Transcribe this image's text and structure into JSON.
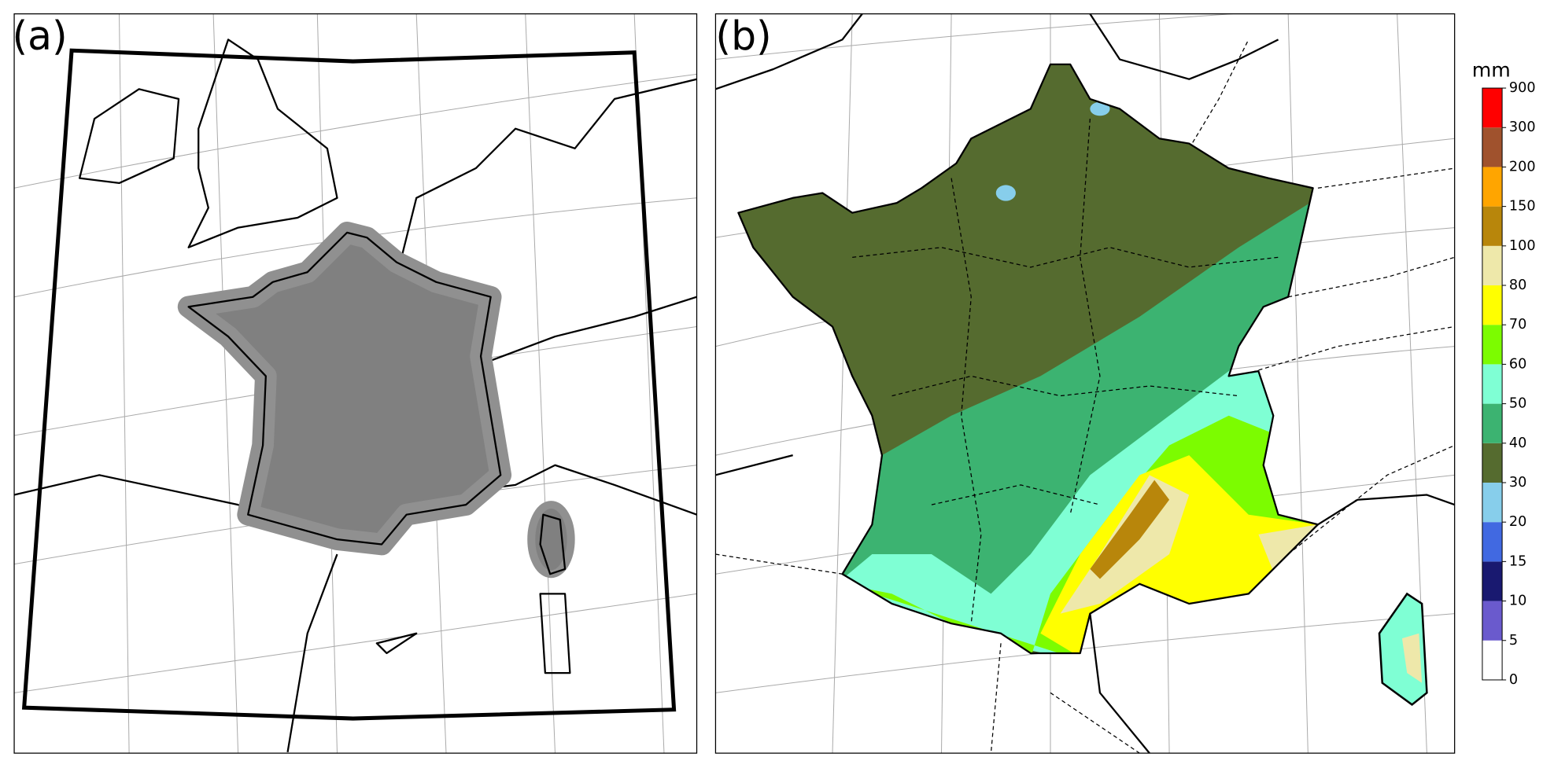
{
  "panels": [
    {
      "label": "(a)"
    },
    {
      "label": "(b)"
    }
  ],
  "colorbar": {
    "unit": "mm",
    "bounds": [
      0,
      5,
      10,
      15,
      20,
      30,
      40,
      50,
      60,
      70,
      80,
      100,
      150,
      200,
      300,
      900
    ],
    "colors": [
      "#ffffff",
      "#6a5acd",
      "#191970",
      "#4169e1",
      "#87ceeb",
      "#556b2f",
      "#3cb371",
      "#7fffd4",
      "#7cfc00",
      "#ffff00",
      "#eee8aa",
      "#b8860b",
      "#ffa500",
      "#a0522d",
      "#ff0000"
    ]
  }
}
